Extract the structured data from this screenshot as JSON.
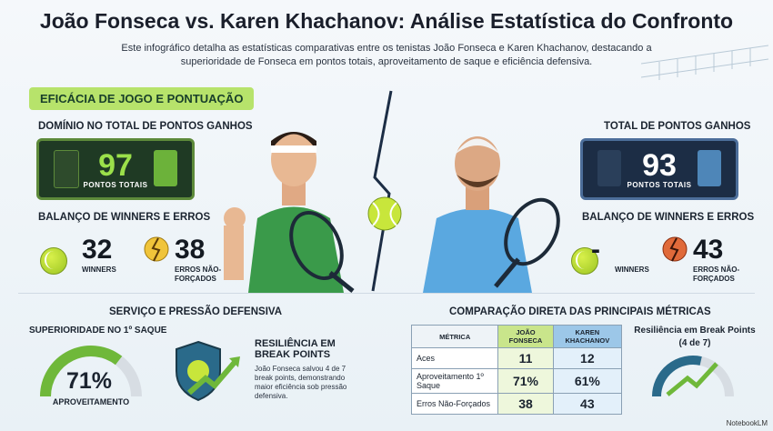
{
  "header": {
    "title": "João Fonseca vs. Karen Khachanov: Análise Estatística do Confronto",
    "subtitle": "Este infográfico detalha as estatísticas comparativas entre os tenistas João Fonseca e Karen Khachanov, destacando a superioridade de Fonseca em pontos totais, aproveitamento de saque e eficiência defensiva."
  },
  "section_banner": "EFICÁCIA DE JOGO E PONTUAÇÃO",
  "fonseca": {
    "points_heading": "DOMÍNIO NO TOTAL DE PONTOS GANHOS",
    "points_value": "97",
    "points_caption": "PONTOS TOTAIS",
    "balance_heading": "BALANÇO DE WINNERS E ERROS",
    "winners_value": "32",
    "winners_label": "WINNERS",
    "errors_value": "38",
    "errors_label": "ERROS NÃO-FORÇADOS"
  },
  "khachanov": {
    "points_heading": "TOTAL DE PONTOS GANHOS",
    "points_value": "93",
    "points_caption": "PONTOS TOTAIS",
    "balance_heading": "BALANÇO DE WINNERS E ERROS",
    "winners_value": "-",
    "winners_label": "WINNERS",
    "errors_value": "43",
    "errors_label": "ERROS NÃO-FORÇADOS"
  },
  "service": {
    "heading": "SERVIÇO E PRESSÃO DEFENSIVA",
    "first_serve_heading": "SUPERIORIDADE NO 1º SAQUE",
    "first_serve_value": "71%",
    "first_serve_caption": "APROVEITAMENTO",
    "first_serve_fraction": 0.71,
    "resilience_title": "RESILIÊNCIA EM BREAK POINTS",
    "resilience_text": "João Fonseca salvou 4 de 7 break points, demonstrando maior eficiência sob pressão defensiva."
  },
  "comparison": {
    "heading": "COMPARAÇÃO DIRETA DAS PRINCIPAIS MÉTRICAS",
    "col_metric": "MÉTRICA",
    "col_jf": "JOÃO FONSECA",
    "col_kk": "KAREN KHACHANOV",
    "rows": [
      {
        "metric": "Aces",
        "jf": "11",
        "kk": "12"
      },
      {
        "metric": "Aproveitamento 1º Saque",
        "jf": "71%",
        "kk": "61%"
      },
      {
        "metric": "Erros Não-Forçados",
        "jf": "38",
        "kk": "43"
      }
    ]
  },
  "break_points": {
    "title": "Resiliência em Break Points",
    "sub": "(4 de 7)",
    "fraction": 0.57
  },
  "brand": "NotebookLM",
  "colors": {
    "fonseca_green": "#7fc33a",
    "khachanov_blue": "#5aa0d8",
    "banner": "#b7e36b"
  }
}
